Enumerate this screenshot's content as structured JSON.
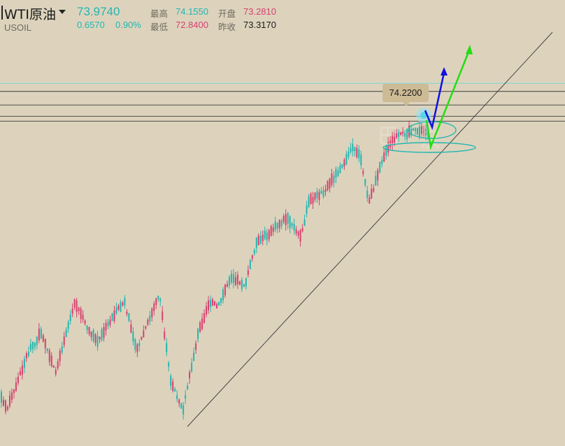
{
  "header": {
    "symbol_name": "WTI原油",
    "symbol_code": "USOIL",
    "last_price": "73.9740",
    "change": "0.6570",
    "change_pct": "0.90%",
    "stats": {
      "high_label": "最高",
      "high_value": "74.1550",
      "open_label": "开盘",
      "open_value": "73.2810",
      "low_label": "最低",
      "low_value": "72.8400",
      "prev_close_label": "昨收",
      "prev_close_value": "73.3170"
    }
  },
  "colors": {
    "background": "#ddd3bd",
    "up_candle": "#22b6b0",
    "down_candle": "#d6406e",
    "up_arrow_blue": "#1010e0",
    "up_arrow_green": "#22dd11",
    "trendline": "#444444"
  },
  "chart_data": {
    "type": "candlestick",
    "callout_label": "74.2200",
    "callout_value": 74.22,
    "y_range_estimate": [
      63.0,
      75.5
    ],
    "horizontal_levels": [
      74.22,
      73.97,
      73.55,
      73.2,
      73.05
    ],
    "candle_count": 205,
    "trendline": {
      "start": {
        "bar": 0,
        "price": 63.6
      },
      "end": {
        "bar": 300,
        "price": 75.8
      }
    },
    "annotations": [
      {
        "type": "arrow",
        "color": "blue",
        "direction": "up"
      },
      {
        "type": "arrow",
        "color": "green",
        "direction": "up"
      },
      {
        "type": "ellipse",
        "count": 2
      }
    ]
  }
}
